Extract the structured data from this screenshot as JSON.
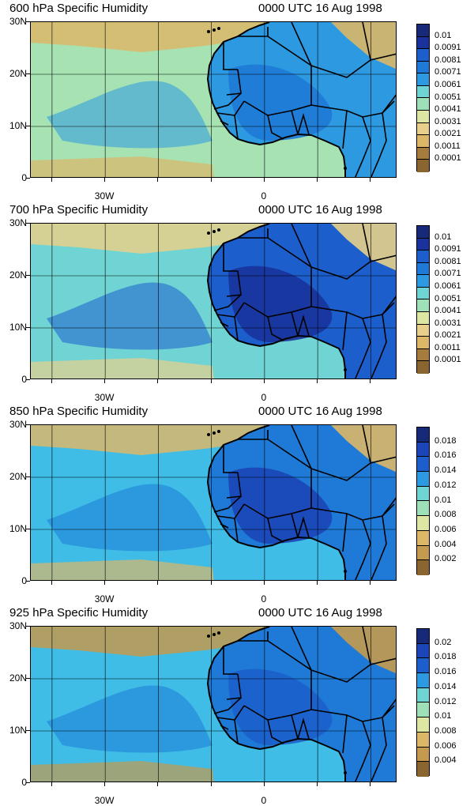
{
  "axes": {
    "y_labels": [
      "30N",
      "20N",
      "10N",
      "0"
    ],
    "x_labels": [
      "30W",
      "0"
    ]
  },
  "palette": [
    "#8a6530",
    "#a67c3c",
    "#c49a4e",
    "#dcb768",
    "#e8d08a",
    "#dde6a2",
    "#bfe3a8",
    "#9ee0b8",
    "#6fd4d3",
    "#3fbde6",
    "#2c99e0",
    "#1e7ad6",
    "#1c5fcc",
    "#1b45b8",
    "#1a339c",
    "#172a7a"
  ],
  "panels": [
    {
      "title": "600 hPa Specific Humidity",
      "time": "0000 UTC 16 Aug 1998",
      "colorbar_labels": [
        "0.01",
        "0.0091",
        "0.0081",
        "0.0071",
        "0.0061",
        "0.0051",
        "0.0041",
        "0.0031",
        "0.0021",
        "0.0011",
        "0.0001"
      ],
      "ocean_color": "#a7e2b3",
      "land_color": "#2c99e0",
      "moist_color": "#1e7ad6",
      "dry_color": "#dcb768"
    },
    {
      "title": "700 hPa Specific Humidity",
      "time": "0000 UTC 16 Aug 1998",
      "colorbar_labels": [
        "0.01",
        "0.0091",
        "0.0081",
        "0.0071",
        "0.0061",
        "0.0051",
        "0.0041",
        "0.0031",
        "0.0021",
        "0.0011",
        "0.0001"
      ],
      "ocean_color": "#6fd4d3",
      "land_color": "#1c5fcc",
      "moist_color": "#1a339c",
      "dry_color": "#e8d08a"
    },
    {
      "title": "850 hPa Specific Humidity",
      "time": "0000 UTC 16 Aug 1998",
      "colorbar_labels": [
        "0.018",
        "0.016",
        "0.014",
        "0.012",
        "0.01",
        "0.008",
        "0.006",
        "0.004",
        "0.002"
      ],
      "ocean_color": "#3fbde6",
      "land_color": "#1e7ad6",
      "moist_color": "#1b45b8",
      "dry_color": "#dcb768"
    },
    {
      "title": "925 hPa Specific Humidity",
      "time": "0000 UTC 16 Aug 1998",
      "colorbar_labels": [
        "0.02",
        "0.018",
        "0.016",
        "0.014",
        "0.012",
        "0.01",
        "0.008",
        "0.006",
        "0.004"
      ],
      "ocean_color": "#3fbde6",
      "land_color": "#1e7ad6",
      "moist_color": "#1c5fcc",
      "dry_color": "#c49a4e"
    }
  ]
}
